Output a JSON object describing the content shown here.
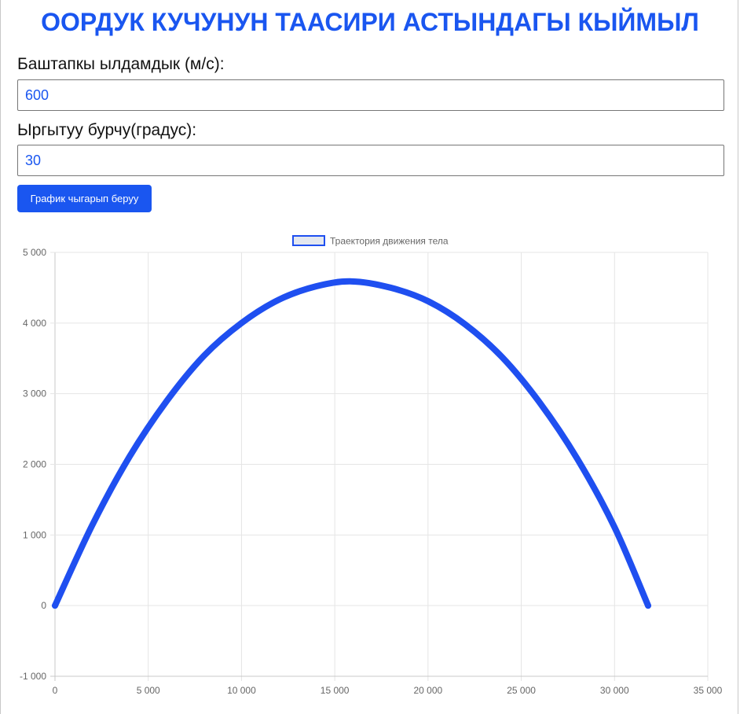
{
  "page": {
    "title": "ООРДУК КУЧУНУН ТААСИРИ АСТЫНДАГЫ КЫЙМЫЛ"
  },
  "form": {
    "velocity_label": "Баштапкы ылдамдык (м/с):",
    "velocity_value": "600",
    "angle_label": "Ыргытуу бурчу(градус):",
    "angle_value": "30",
    "submit_label": "График чыгарып беруу"
  },
  "colors": {
    "accent": "#1a56f0",
    "line": "#1f4ff0",
    "legend_fill": "#e3e7ef",
    "grid": "#e5e5e5",
    "axis": "#c8c8c8"
  },
  "chart_data": {
    "type": "line",
    "title": "",
    "xlabel": "",
    "ylabel": "",
    "legend": {
      "position": "top-center",
      "entries": [
        "Траектория движения тела"
      ]
    },
    "series": [
      {
        "name": "Траектория движения тела",
        "x": [
          0,
          2000,
          4000,
          6000,
          8000,
          10000,
          12000,
          14000,
          15900,
          18000,
          20000,
          22000,
          24000,
          26000,
          28000,
          30000,
          31800
        ],
        "y": [
          0,
          1140,
          2110,
          2900,
          3540,
          4000,
          4330,
          4520,
          4590,
          4500,
          4310,
          3980,
          3510,
          2870,
          2080,
          1110,
          0
        ]
      }
    ],
    "xlim": [
      0,
      35000
    ],
    "ylim": [
      -1000,
      5000
    ],
    "x_ticks": [
      0,
      5000,
      10000,
      15000,
      20000,
      25000,
      30000,
      35000
    ],
    "y_ticks": [
      -1000,
      0,
      1000,
      2000,
      3000,
      4000,
      5000
    ],
    "x_tick_labels": [
      "0",
      "5 000",
      "10 000",
      "15 000",
      "20 000",
      "25 000",
      "30 000",
      "35 000"
    ],
    "y_tick_labels": [
      "-1 000",
      "0",
      "1 000",
      "2 000",
      "3 000",
      "4 000",
      "5 000"
    ],
    "grid": true
  }
}
